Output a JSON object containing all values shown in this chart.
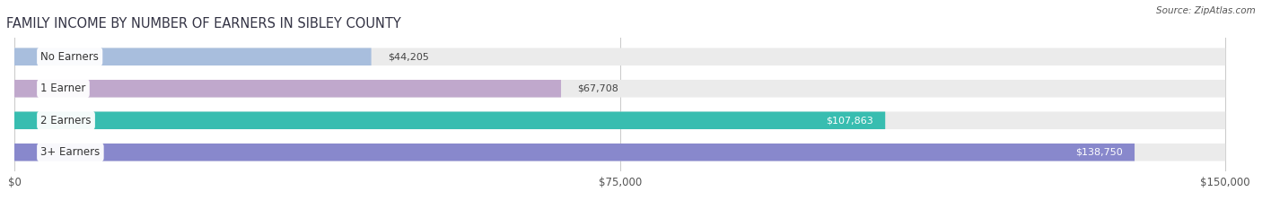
{
  "title": "FAMILY INCOME BY NUMBER OF EARNERS IN SIBLEY COUNTY",
  "source": "Source: ZipAtlas.com",
  "categories": [
    "No Earners",
    "1 Earner",
    "2 Earners",
    "3+ Earners"
  ],
  "values": [
    44205,
    67708,
    107863,
    138750
  ],
  "bar_colors": [
    "#a8bedd",
    "#c0a8cc",
    "#38bdb0",
    "#8888cc"
  ],
  "bar_bg_color": "#ebebeb",
  "label_colors": [
    "#444444",
    "#444444",
    "#ffffff",
    "#ffffff"
  ],
  "max_value": 150000,
  "x_ticks": [
    0,
    75000,
    150000
  ],
  "x_tick_labels": [
    "$0",
    "$75,000",
    "$150,000"
  ],
  "fig_bg_color": "#ffffff",
  "value_labels": [
    "$44,205",
    "$67,708",
    "$107,863",
    "$138,750"
  ],
  "value_threshold": 0.55
}
